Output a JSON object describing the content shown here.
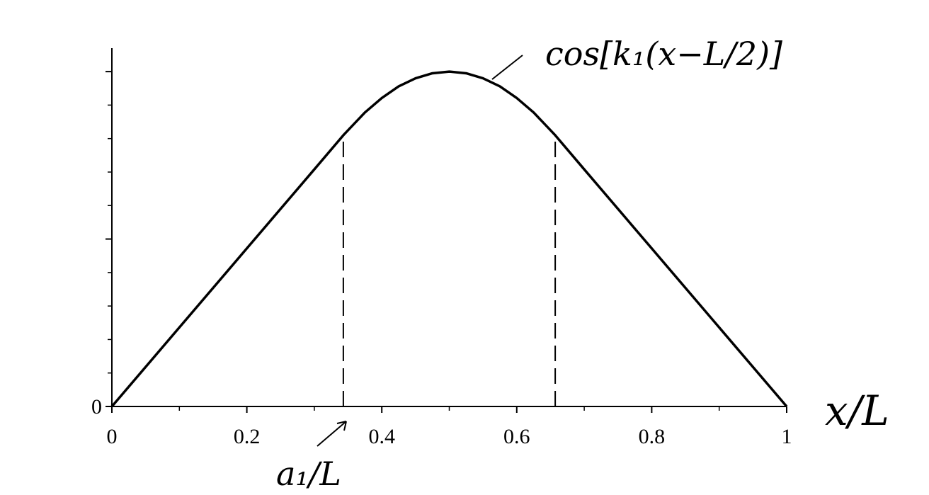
{
  "chart_data": {
    "type": "line",
    "x": [
      0,
      0.1,
      0.2,
      0.3,
      0.343,
      0.375,
      0.4,
      0.425,
      0.45,
      0.475,
      0.5,
      0.525,
      0.55,
      0.575,
      0.6,
      0.625,
      0.657,
      0.7,
      0.8,
      0.9,
      1
    ],
    "series": [
      {
        "color": "#000000",
        "values": [
          0,
          0.236,
          0.472,
          0.708,
          0.81,
          0.878,
          0.921,
          0.956,
          0.98,
          0.995,
          1,
          0.995,
          0.98,
          0.956,
          0.921,
          0.878,
          0.81,
          0.708,
          0.472,
          0.236,
          0
        ]
      }
    ],
    "dashed_lines": {
      "x": [
        0.343,
        0.657
      ],
      "y": [
        0.81,
        0.81
      ]
    },
    "xlim": [
      0,
      1
    ],
    "ylim": [
      0,
      1.07
    ],
    "xticks": [
      0,
      0.2,
      0.4,
      0.6,
      0.8,
      1
    ],
    "x_minor_ticks": [
      0.1,
      0.3,
      0.5,
      0.7,
      0.9
    ],
    "yticks": [
      0
    ],
    "y_unlabeled_ticks": [
      0.5,
      1
    ],
    "y_minor_ticks": [
      0.1,
      0.2,
      0.3,
      0.4,
      0.6,
      0.7,
      0.8,
      0.9
    ],
    "xlabel": "x/L",
    "annotations": [
      "cos[k₁(x−L/2)]",
      "a₁/L"
    ]
  }
}
